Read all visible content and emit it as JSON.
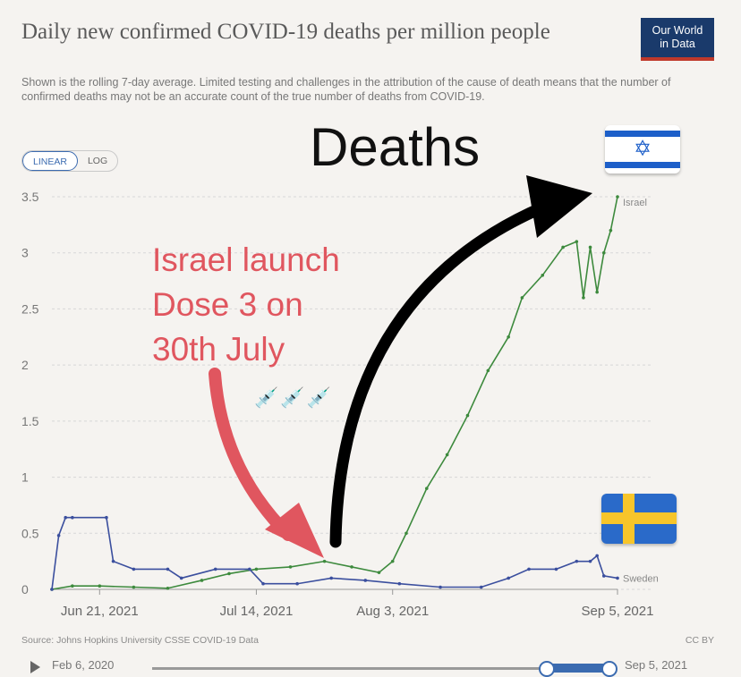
{
  "title": "Daily new confirmed COVID-19 deaths per million people",
  "subtitle": "Shown is the rolling 7-day average. Limited testing and challenges in the attribution of the cause of death means that the number of confirmed deaths may not be an accurate count of the true number of deaths from COVID-19.",
  "logo": {
    "line1": "Our World",
    "line2": "in Data"
  },
  "toggle": {
    "linear": "LINEAR",
    "log": "LOG"
  },
  "source": "Source: Johns Hopkins University CSSE COVID-19 Data",
  "license": "CC BY",
  "timeline": {
    "start": "Feb 6, 2020",
    "end": "Sep 5, 2021"
  },
  "annotations": {
    "deaths": "Deaths",
    "israel_lines": [
      "Israel launch",
      "Dose 3 on",
      "30th July"
    ],
    "syringes": "💉💉💉"
  },
  "colors": {
    "israel": "#3d8a3d",
    "sweden": "#3b4f9e",
    "grid": "#d7d7d7",
    "arrow_red": "#e0565f",
    "arrow_black": "#000000"
  },
  "chart_data": {
    "type": "line",
    "title": "Daily new confirmed COVID-19 deaths per million people",
    "ylim": [
      0,
      3.5
    ],
    "yticks": [
      0,
      0.5,
      1,
      1.5,
      2,
      2.5,
      3,
      3.5
    ],
    "ytick_labels": [
      "0",
      "0.5",
      "1",
      "1.5",
      "2",
      "2.5",
      "3",
      "3.5"
    ],
    "xrange": [
      "2021-06-14",
      "2021-09-05"
    ],
    "xticks": [
      "2021-06-21",
      "2021-07-14",
      "2021-08-03",
      "2021-09-05"
    ],
    "xtick_labels": [
      "Jun 21, 2021",
      "Jul 14, 2021",
      "Aug 3, 2021",
      "Sep 5, 2021"
    ],
    "grid": true,
    "series": [
      {
        "name": "Israel",
        "x": [
          "2021-06-14",
          "2021-06-17",
          "2021-06-21",
          "2021-06-26",
          "2021-07-01",
          "2021-07-06",
          "2021-07-10",
          "2021-07-14",
          "2021-07-19",
          "2021-07-24",
          "2021-07-28",
          "2021-08-01",
          "2021-08-03",
          "2021-08-05",
          "2021-08-08",
          "2021-08-11",
          "2021-08-14",
          "2021-08-17",
          "2021-08-20",
          "2021-08-22",
          "2021-08-25",
          "2021-08-28",
          "2021-08-30",
          "2021-08-31",
          "2021-09-01",
          "2021-09-02",
          "2021-09-03",
          "2021-09-04",
          "2021-09-05"
        ],
        "values": [
          0.0,
          0.03,
          0.03,
          0.02,
          0.01,
          0.08,
          0.14,
          0.18,
          0.2,
          0.25,
          0.2,
          0.15,
          0.25,
          0.5,
          0.9,
          1.2,
          1.55,
          1.95,
          2.25,
          2.6,
          2.8,
          3.05,
          3.1,
          2.6,
          3.05,
          2.65,
          3.0,
          3.2,
          3.5
        ]
      },
      {
        "name": "Sweden",
        "x": [
          "2021-06-14",
          "2021-06-15",
          "2021-06-16",
          "2021-06-17",
          "2021-06-22",
          "2021-06-23",
          "2021-06-26",
          "2021-07-01",
          "2021-07-03",
          "2021-07-08",
          "2021-07-13",
          "2021-07-15",
          "2021-07-20",
          "2021-07-25",
          "2021-07-30",
          "2021-08-04",
          "2021-08-10",
          "2021-08-16",
          "2021-08-20",
          "2021-08-23",
          "2021-08-27",
          "2021-08-30",
          "2021-09-01",
          "2021-09-02",
          "2021-09-03",
          "2021-09-05"
        ],
        "values": [
          0.0,
          0.48,
          0.64,
          0.64,
          0.64,
          0.25,
          0.18,
          0.18,
          0.1,
          0.18,
          0.18,
          0.05,
          0.05,
          0.1,
          0.08,
          0.05,
          0.02,
          0.02,
          0.1,
          0.18,
          0.18,
          0.25,
          0.25,
          0.3,
          0.12,
          0.1
        ]
      }
    ]
  }
}
